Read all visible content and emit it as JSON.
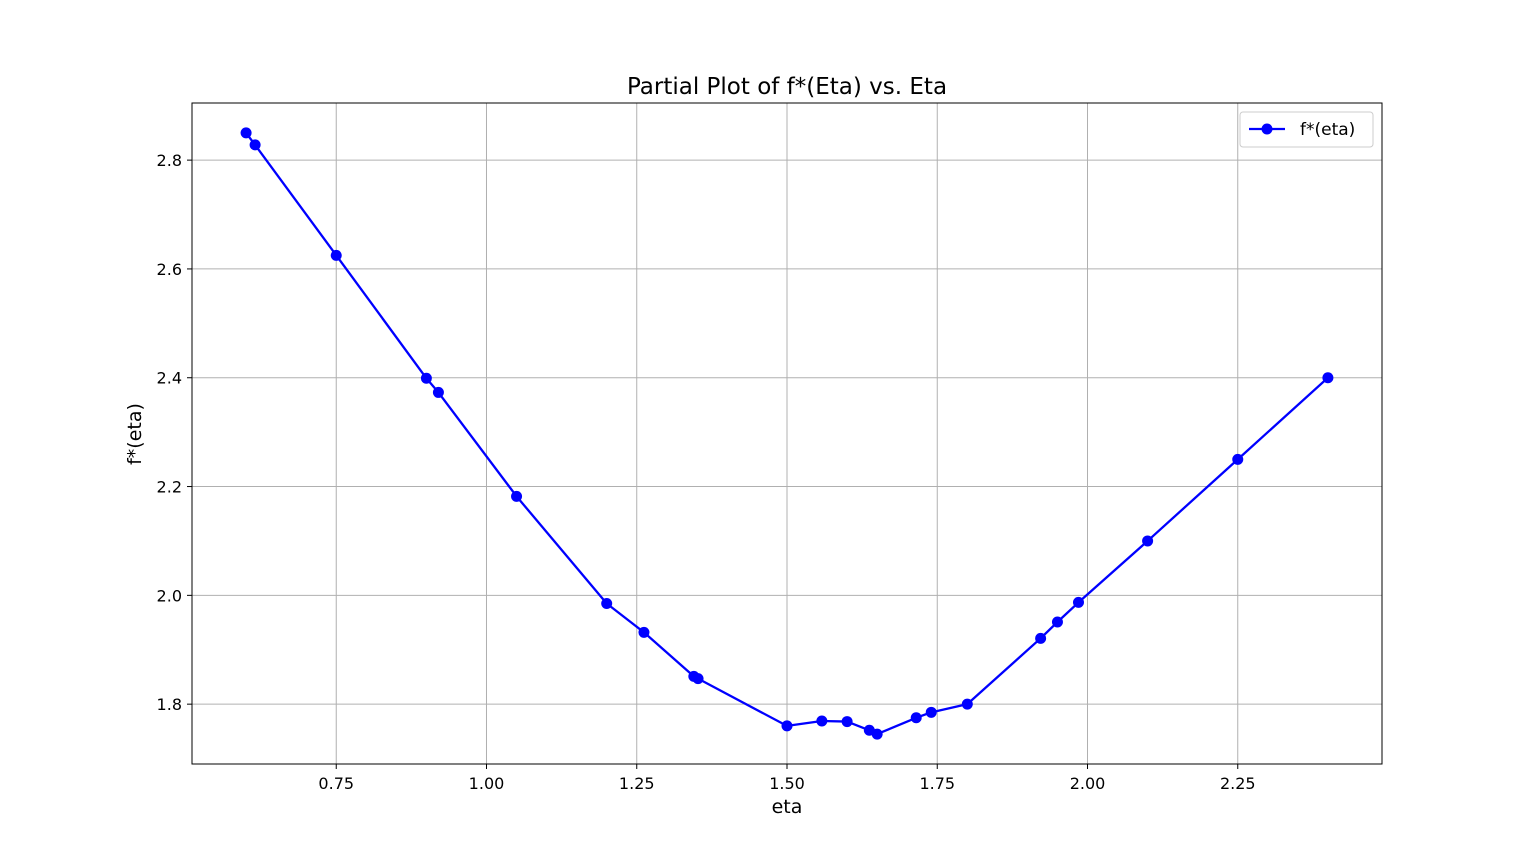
{
  "chart_data": {
    "type": "line",
    "title": "Partial Plot of f*(Eta) vs. Eta",
    "xlabel": "eta",
    "ylabel": "f*(eta)",
    "xlim": [
      0.51,
      2.49
    ],
    "ylim": [
      1.69,
      2.905
    ],
    "xticks": [
      0.75,
      1.0,
      1.25,
      1.5,
      1.75,
      2.0,
      2.25
    ],
    "xtick_labels": [
      "0.75",
      "1.00",
      "1.25",
      "1.50",
      "1.75",
      "2.00",
      "2.25"
    ],
    "yticks": [
      1.8,
      2.0,
      2.2,
      2.4,
      2.6,
      2.8
    ],
    "ytick_labels": [
      "1.8",
      "2.0",
      "2.2",
      "2.4",
      "2.6",
      "2.8"
    ],
    "grid": true,
    "legend_position": "top-right",
    "series": [
      {
        "name": "f*(eta)",
        "color": "#0000ff",
        "marker": "circle",
        "x": [
          0.6,
          0.615,
          0.75,
          0.9,
          0.92,
          1.05,
          1.2,
          1.262,
          1.345,
          1.352,
          1.5,
          1.558,
          1.6,
          1.637,
          1.65,
          1.715,
          1.74,
          1.8,
          1.922,
          1.95,
          1.985,
          2.1,
          2.25,
          2.4
        ],
        "y": [
          2.85,
          2.828,
          2.625,
          2.399,
          2.373,
          2.182,
          1.985,
          1.932,
          1.851,
          1.847,
          1.76,
          1.769,
          1.768,
          1.752,
          1.745,
          1.775,
          1.785,
          1.8,
          1.921,
          1.951,
          1.987,
          2.1,
          2.25,
          2.4
        ]
      }
    ]
  }
}
